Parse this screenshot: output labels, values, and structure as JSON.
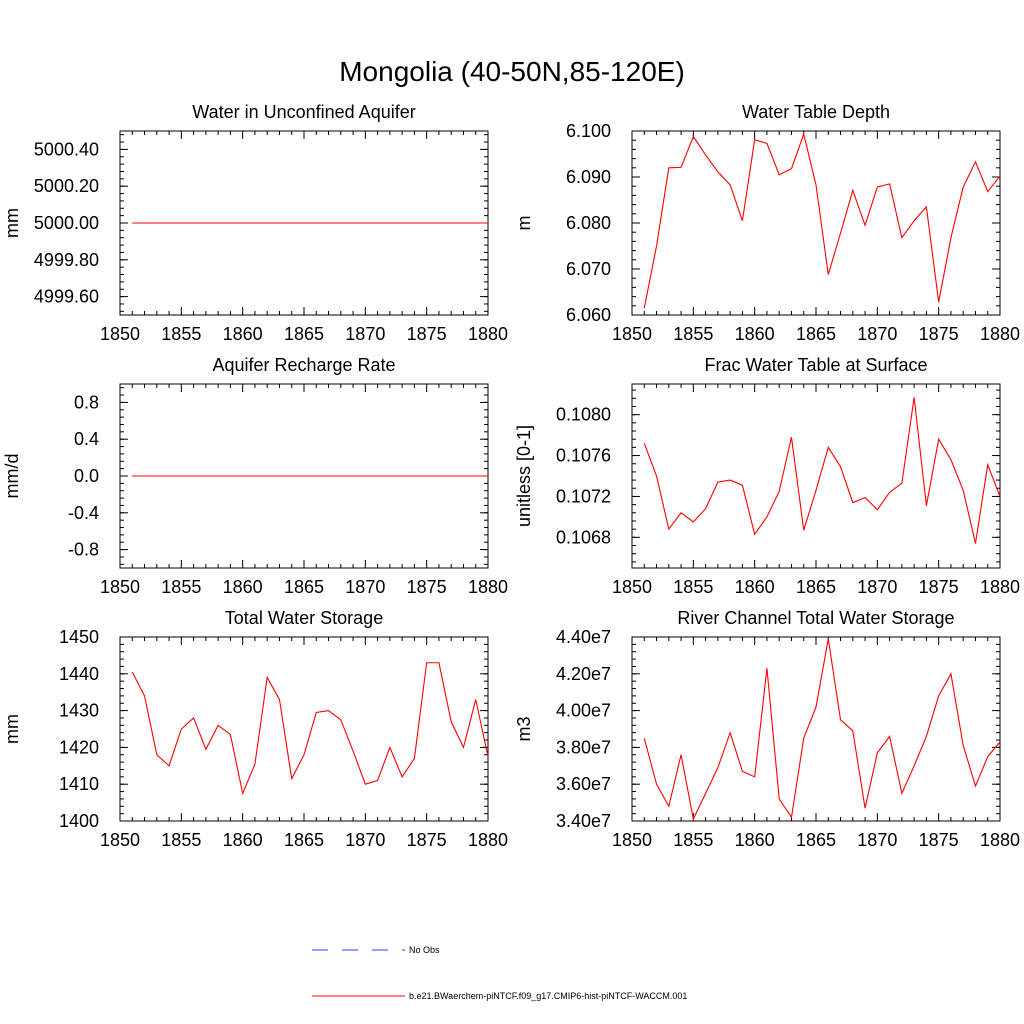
{
  "figure": {
    "title": "Mongolia (40-50N,85-120E)",
    "legend": [
      {
        "label": "No Obs",
        "color": "#2040ff",
        "dash": "dashed"
      },
      {
        "label": "b.e21.BWaerchem-piNTCF.f09_g17.CMIP6-hist-piNTCF-WACCM.001",
        "color": "#ff0000",
        "dash": "solid"
      }
    ]
  },
  "chart_data": [
    {
      "type": "line",
      "title": "Water in Unconfined Aquifer",
      "ylabel": "mm",
      "xlim": [
        1850,
        1880
      ],
      "ylim": [
        4999.5,
        5000.5
      ],
      "xticks": [
        1850,
        1855,
        1860,
        1865,
        1870,
        1875,
        1880
      ],
      "yticks": [
        4999.6,
        4999.8,
        5000.0,
        5000.2,
        5000.4
      ],
      "ytick_labels": [
        "4999.60",
        "4999.80",
        "5000.00",
        "5000.20",
        "5000.40"
      ],
      "series": [
        {
          "color": "#ff0000",
          "x": [
            1851,
            1852,
            1853,
            1854,
            1855,
            1856,
            1857,
            1858,
            1859,
            1860,
            1861,
            1862,
            1863,
            1864,
            1865,
            1866,
            1867,
            1868,
            1869,
            1870,
            1871,
            1872,
            1873,
            1874,
            1875,
            1876,
            1877,
            1878,
            1879,
            1880
          ],
          "y": [
            5000,
            5000,
            5000,
            5000,
            5000,
            5000,
            5000,
            5000,
            5000,
            5000,
            5000,
            5000,
            5000,
            5000,
            5000,
            5000,
            5000,
            5000,
            5000,
            5000,
            5000,
            5000,
            5000,
            5000,
            5000,
            5000,
            5000,
            5000,
            5000,
            5000
          ]
        }
      ]
    },
    {
      "type": "line",
      "title": "Water Table Depth",
      "ylabel": "m",
      "xlim": [
        1850,
        1880
      ],
      "ylim": [
        6.06,
        6.1
      ],
      "xticks": [
        1850,
        1855,
        1860,
        1865,
        1870,
        1875,
        1880
      ],
      "yticks": [
        6.06,
        6.07,
        6.08,
        6.09,
        6.1
      ],
      "ytick_labels": [
        "6.060",
        "6.070",
        "6.080",
        "6.090",
        "6.100"
      ],
      "series": [
        {
          "color": "#ff0000",
          "x": [
            1851,
            1852,
            1853,
            1854,
            1855,
            1856,
            1857,
            1858,
            1859,
            1860,
            1861,
            1862,
            1863,
            1864,
            1865,
            1866,
            1867,
            1868,
            1869,
            1870,
            1871,
            1872,
            1873,
            1874,
            1875,
            1876,
            1877,
            1878,
            1879,
            1880
          ],
          "y": [
            6.0615,
            6.075,
            6.092,
            6.0921,
            6.0988,
            6.0948,
            6.0911,
            6.0883,
            6.0805,
            6.0981,
            6.0973,
            6.0905,
            6.0918,
            6.0993,
            6.0883,
            6.0688,
            6.0778,
            6.0871,
            6.0795,
            6.0878,
            6.0885,
            6.0768,
            6.0805,
            6.0835,
            6.0628,
            6.0768,
            6.0878,
            6.0933,
            6.0868,
            6.0902
          ]
        }
      ]
    },
    {
      "type": "line",
      "title": "Aquifer Recharge Rate",
      "ylabel": "mm/d",
      "xlim": [
        1850,
        1880
      ],
      "ylim": [
        -1.0,
        1.0
      ],
      "xticks": [
        1850,
        1855,
        1860,
        1865,
        1870,
        1875,
        1880
      ],
      "yticks": [
        -0.8,
        -0.4,
        0.0,
        0.4,
        0.8
      ],
      "ytick_labels": [
        "-0.8",
        "-0.4",
        "0.0",
        "0.4",
        "0.8"
      ],
      "series": [
        {
          "color": "#ff0000",
          "x": [
            1851,
            1852,
            1853,
            1854,
            1855,
            1856,
            1857,
            1858,
            1859,
            1860,
            1861,
            1862,
            1863,
            1864,
            1865,
            1866,
            1867,
            1868,
            1869,
            1870,
            1871,
            1872,
            1873,
            1874,
            1875,
            1876,
            1877,
            1878,
            1879,
            1880
          ],
          "y": [
            0,
            0,
            0,
            0,
            0,
            0,
            0,
            0,
            0,
            0,
            0,
            0,
            0,
            0,
            0,
            0,
            0,
            0,
            0,
            0,
            0,
            0,
            0,
            0,
            0,
            0,
            0,
            0,
            0,
            0
          ]
        }
      ]
    },
    {
      "type": "line",
      "title": "Frac Water Table at Surface",
      "ylabel": "unitless [0-1]",
      "xlim": [
        1850,
        1880
      ],
      "ylim": [
        0.1065,
        0.1083
      ],
      "xticks": [
        1850,
        1855,
        1860,
        1865,
        1870,
        1875,
        1880
      ],
      "yticks": [
        0.1068,
        0.1072,
        0.1076,
        0.108
      ],
      "ytick_labels": [
        "0.1068",
        "0.1072",
        "0.1076",
        "0.1080"
      ],
      "series": [
        {
          "color": "#ff0000",
          "x": [
            1851,
            1852,
            1853,
            1854,
            1855,
            1856,
            1857,
            1858,
            1859,
            1860,
            1861,
            1862,
            1863,
            1864,
            1865,
            1866,
            1867,
            1868,
            1869,
            1870,
            1871,
            1872,
            1873,
            1874,
            1875,
            1876,
            1877,
            1878,
            1879,
            1880
          ],
          "y": [
            0.10772,
            0.1074,
            0.10688,
            0.10704,
            0.10695,
            0.10708,
            0.10734,
            0.10736,
            0.10731,
            0.10683,
            0.107,
            0.10725,
            0.10778,
            0.10687,
            0.10726,
            0.10768,
            0.10749,
            0.10714,
            0.10719,
            0.10707,
            0.10724,
            0.10733,
            0.10817,
            0.10711,
            0.10776,
            0.10756,
            0.10726,
            0.10674,
            0.10751,
            0.1072
          ]
        }
      ]
    },
    {
      "type": "line",
      "title": "Total Water Storage",
      "ylabel": "mm",
      "xlim": [
        1850,
        1880
      ],
      "ylim": [
        1400,
        1450
      ],
      "xticks": [
        1850,
        1855,
        1860,
        1865,
        1870,
        1875,
        1880
      ],
      "yticks": [
        1400,
        1410,
        1420,
        1430,
        1440,
        1450
      ],
      "ytick_labels": [
        "1400",
        "1410",
        "1420",
        "1430",
        "1440",
        "1450"
      ],
      "series": [
        {
          "color": "#ff0000",
          "x": [
            1851,
            1852,
            1853,
            1854,
            1855,
            1856,
            1857,
            1858,
            1859,
            1860,
            1861,
            1862,
            1863,
            1864,
            1865,
            1866,
            1867,
            1868,
            1869,
            1870,
            1871,
            1872,
            1873,
            1874,
            1875,
            1876,
            1877,
            1878,
            1879,
            1880
          ],
          "y": [
            1440.5,
            1434.0,
            1418.0,
            1415.0,
            1425.0,
            1428.0,
            1419.5,
            1426.0,
            1423.5,
            1407.5,
            1415.5,
            1439.0,
            1433.0,
            1411.5,
            1418.0,
            1429.5,
            1430.0,
            1427.5,
            1419.0,
            1410.0,
            1411.0,
            1420.0,
            1412.0,
            1417.0,
            1443.0,
            1443.0,
            1427.0,
            1420.0,
            1433.0,
            1417.5
          ]
        }
      ]
    },
    {
      "type": "line",
      "title": "River Channel Total Water Storage",
      "ylabel": "m3",
      "xlim": [
        1850,
        1880
      ],
      "ylim": [
        34000000,
        44000000
      ],
      "xticks": [
        1850,
        1855,
        1860,
        1865,
        1870,
        1875,
        1880
      ],
      "yticks": [
        34000000,
        36000000,
        38000000,
        40000000,
        42000000,
        44000000
      ],
      "ytick_labels": [
        "3.40e7",
        "3.60e7",
        "3.80e7",
        "4.00e7",
        "4.20e7",
        "4.40e7"
      ],
      "series": [
        {
          "color": "#ff0000",
          "x": [
            1851,
            1852,
            1853,
            1854,
            1855,
            1856,
            1857,
            1858,
            1859,
            1860,
            1861,
            1862,
            1863,
            1864,
            1865,
            1866,
            1867,
            1868,
            1869,
            1870,
            1871,
            1872,
            1873,
            1874,
            1875,
            1876,
            1877,
            1878,
            1879,
            1880
          ],
          "y": [
            38500000,
            36000000,
            34800000,
            37600000,
            34100000,
            35500000,
            36900000,
            38800000,
            36700000,
            36400000,
            42300000,
            35200000,
            34200000,
            38500000,
            40200000,
            43900000,
            39500000,
            38900000,
            34700000,
            37700000,
            38600000,
            35500000,
            37000000,
            38600000,
            40800000,
            42000000,
            38100000,
            35900000,
            37500000,
            38300000
          ]
        }
      ]
    }
  ]
}
